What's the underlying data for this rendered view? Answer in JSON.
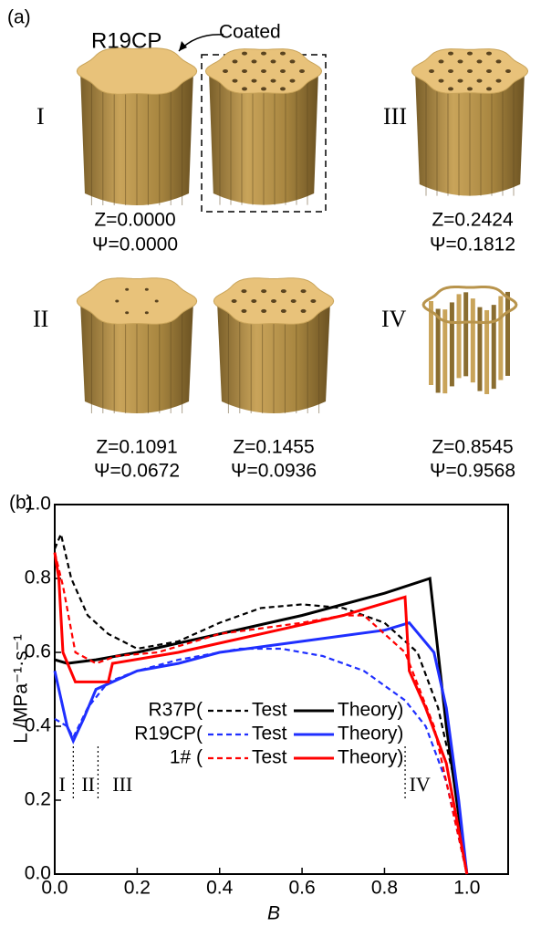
{
  "panel_a": {
    "label": "(a)",
    "coated_label": "Coated",
    "material": "R19CP",
    "stages": [
      {
        "label": "I"
      },
      {
        "label": "II"
      },
      {
        "label": "III"
      },
      {
        "label": "IV"
      }
    ],
    "specimens": [
      {
        "z": "Z=0.0000",
        "psi": "Ψ=0.0000"
      },
      {
        "z": "Z=0.2424",
        "psi": "Ψ=0.1812"
      },
      {
        "z": "Z=0.1091",
        "psi": "Ψ=0.0672"
      },
      {
        "z": "Z=0.1455",
        "psi": "Ψ=0.0936"
      },
      {
        "z": "Z=0.8545",
        "psi": "Ψ=0.9568"
      }
    ]
  },
  "chart_data": {
    "type": "line",
    "panel_label": "(b)",
    "x_label": "B",
    "y_label": "L /MPa⁻¹·s⁻¹",
    "xlim": [
      0,
      1.1
    ],
    "ylim": [
      0,
      1.0
    ],
    "xticks": [
      {
        "value": 0,
        "label": "0.0"
      },
      {
        "value": 0.2,
        "label": "0.2"
      },
      {
        "value": 0.4,
        "label": "0.4"
      },
      {
        "value": 0.6,
        "label": "0.6"
      },
      {
        "value": 0.8,
        "label": "0.8"
      },
      {
        "value": 1.0,
        "label": "1.0"
      }
    ],
    "yticks": [
      {
        "value": 0,
        "label": "0.0"
      },
      {
        "value": 0.2,
        "label": "0.2"
      },
      {
        "value": 0.4,
        "label": "0.4"
      },
      {
        "value": 0.6,
        "label": "0.6"
      },
      {
        "value": 0.8,
        "label": "0.8"
      },
      {
        "value": 1.0,
        "label": "1.0"
      }
    ],
    "dividers": [
      0.045,
      0.105,
      0.85
    ],
    "region_labels": [
      {
        "label": "I",
        "x": 0.01
      },
      {
        "label": "II",
        "x": 0.065
      },
      {
        "label": "III",
        "x": 0.14
      },
      {
        "label": "IV",
        "x": 0.86
      }
    ],
    "legend_groups": [
      "R37P(",
      "R19CP(",
      "1#  ("
    ],
    "series": [
      {
        "name": "Test",
        "color": "#000000",
        "dashed": true,
        "x": [
          0,
          0.015,
          0.04,
          0.08,
          0.13,
          0.2,
          0.3,
          0.4,
          0.5,
          0.6,
          0.7,
          0.8,
          0.88,
          0.93,
          0.97,
          1.0
        ],
        "values": [
          0.88,
          0.92,
          0.8,
          0.7,
          0.65,
          0.61,
          0.63,
          0.68,
          0.72,
          0.73,
          0.72,
          0.68,
          0.6,
          0.45,
          0.25,
          0
        ]
      },
      {
        "name": "Theory)",
        "color": "#000000",
        "dashed": false,
        "x": [
          0,
          0.03,
          0.1,
          0.2,
          0.4,
          0.6,
          0.8,
          0.91,
          0.95,
          1.0
        ],
        "values": [
          0.58,
          0.57,
          0.58,
          0.6,
          0.65,
          0.7,
          0.76,
          0.8,
          0.4,
          0
        ]
      },
      {
        "name": "Test",
        "color": "#1f2fff",
        "dashed": true,
        "x": [
          0,
          0.03,
          0.045,
          0.08,
          0.13,
          0.2,
          0.3,
          0.45,
          0.55,
          0.65,
          0.75,
          0.85,
          0.9,
          0.95,
          1.0
        ],
        "values": [
          0.42,
          0.4,
          0.37,
          0.45,
          0.52,
          0.55,
          0.58,
          0.61,
          0.61,
          0.59,
          0.55,
          0.47,
          0.4,
          0.25,
          0
        ]
      },
      {
        "name": "Theory)",
        "color": "#1f2fff",
        "dashed": false,
        "x": [
          0,
          0.03,
          0.045,
          0.07,
          0.1,
          0.2,
          0.3,
          0.4,
          0.6,
          0.8,
          0.86,
          0.92,
          0.95,
          0.98,
          1.0
        ],
        "values": [
          0.55,
          0.4,
          0.36,
          0.42,
          0.5,
          0.55,
          0.57,
          0.6,
          0.63,
          0.66,
          0.68,
          0.6,
          0.45,
          0.2,
          0
        ]
      },
      {
        "name": "Test",
        "color": "#ff0000",
        "dashed": true,
        "x": [
          0,
          0.02,
          0.05,
          0.1,
          0.15,
          0.25,
          0.4,
          0.6,
          0.7,
          0.75,
          0.85,
          0.92,
          0.96,
          1.0
        ],
        "values": [
          0.87,
          0.78,
          0.6,
          0.57,
          0.59,
          0.6,
          0.65,
          0.68,
          0.7,
          0.7,
          0.6,
          0.4,
          0.2,
          0
        ]
      },
      {
        "name": "Theory)",
        "color": "#ff0000",
        "dashed": false,
        "x": [
          0,
          0.01,
          0.02,
          0.05,
          0.13,
          0.14,
          0.3,
          0.5,
          0.7,
          0.85,
          0.86,
          0.9,
          0.95,
          1.0
        ],
        "values": [
          0.87,
          0.8,
          0.6,
          0.52,
          0.52,
          0.57,
          0.6,
          0.65,
          0.7,
          0.75,
          0.55,
          0.45,
          0.3,
          0
        ]
      }
    ]
  }
}
